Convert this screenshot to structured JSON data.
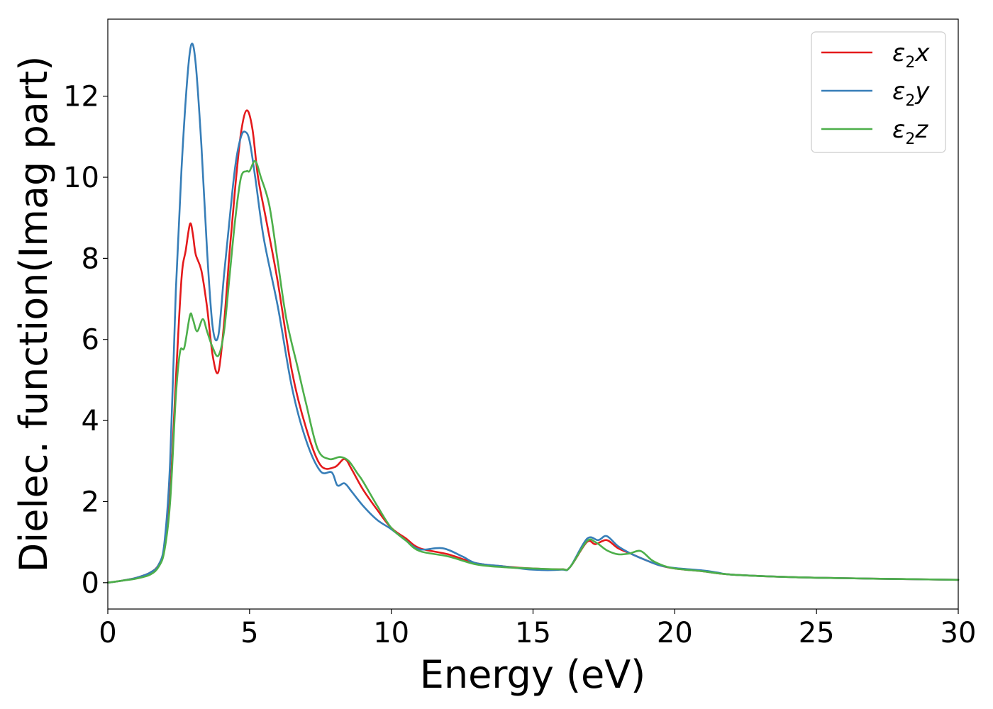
{
  "chart_data": {
    "type": "line",
    "xlabel": "Energy (eV)",
    "ylabel": "Dielec. function(Imag part)",
    "xlim": [
      0,
      30
    ],
    "ylim": [
      -0.65,
      13.9
    ],
    "xticks": [
      0,
      5,
      10,
      15,
      20,
      25,
      30
    ],
    "yticks": [
      0,
      2,
      4,
      6,
      8,
      10,
      12
    ],
    "grid": false,
    "legend_position": "top-right",
    "series": [
      {
        "name": "ε2x",
        "legend": {
          "base": "ε",
          "sub": "2",
          "var": "x"
        },
        "color": "#e41a1c",
        "points": [
          [
            0,
            0.0
          ],
          [
            0.5,
            0.05
          ],
          [
            1.0,
            0.12
          ],
          [
            1.5,
            0.25
          ],
          [
            1.8,
            0.45
          ],
          [
            2.0,
            0.9
          ],
          [
            2.2,
            2.2
          ],
          [
            2.4,
            5.0
          ],
          [
            2.6,
            7.5
          ],
          [
            2.75,
            8.2
          ],
          [
            2.9,
            8.85
          ],
          [
            3.0,
            8.6
          ],
          [
            3.1,
            8.1
          ],
          [
            3.3,
            7.7
          ],
          [
            3.5,
            6.8
          ],
          [
            3.7,
            5.6
          ],
          [
            3.9,
            5.2
          ],
          [
            4.1,
            6.4
          ],
          [
            4.3,
            8.2
          ],
          [
            4.5,
            9.8
          ],
          [
            4.7,
            11.1
          ],
          [
            4.9,
            11.65
          ],
          [
            5.1,
            11.2
          ],
          [
            5.3,
            10.0
          ],
          [
            5.6,
            8.9
          ],
          [
            6.0,
            7.4
          ],
          [
            6.5,
            5.2
          ],
          [
            7.0,
            3.8
          ],
          [
            7.5,
            2.9
          ],
          [
            8.0,
            2.85
          ],
          [
            8.35,
            3.05
          ],
          [
            8.6,
            2.8
          ],
          [
            9.0,
            2.3
          ],
          [
            9.5,
            1.8
          ],
          [
            10.0,
            1.35
          ],
          [
            10.5,
            1.1
          ],
          [
            11.0,
            0.85
          ],
          [
            12.0,
            0.7
          ],
          [
            13.0,
            0.48
          ],
          [
            14.0,
            0.4
          ],
          [
            15.0,
            0.35
          ],
          [
            16.0,
            0.33
          ],
          [
            16.3,
            0.38
          ],
          [
            16.9,
            1.0
          ],
          [
            17.2,
            0.95
          ],
          [
            17.6,
            1.05
          ],
          [
            18.0,
            0.85
          ],
          [
            18.5,
            0.7
          ],
          [
            19.0,
            0.55
          ],
          [
            19.5,
            0.42
          ],
          [
            20.0,
            0.35
          ],
          [
            21.0,
            0.28
          ],
          [
            22.0,
            0.2
          ],
          [
            24.0,
            0.14
          ],
          [
            26.0,
            0.11
          ],
          [
            28.0,
            0.09
          ],
          [
            30.0,
            0.07
          ]
        ]
      },
      {
        "name": "ε2y",
        "legend": {
          "base": "ε",
          "sub": "2",
          "var": "y"
        },
        "color": "#377eb8",
        "points": [
          [
            0,
            0.0
          ],
          [
            0.5,
            0.05
          ],
          [
            1.0,
            0.12
          ],
          [
            1.5,
            0.25
          ],
          [
            1.8,
            0.45
          ],
          [
            2.0,
            1.0
          ],
          [
            2.2,
            3.0
          ],
          [
            2.4,
            7.2
          ],
          [
            2.6,
            10.2
          ],
          [
            2.8,
            12.4
          ],
          [
            2.95,
            13.28
          ],
          [
            3.1,
            12.8
          ],
          [
            3.3,
            10.8
          ],
          [
            3.5,
            8.2
          ],
          [
            3.7,
            6.3
          ],
          [
            3.9,
            6.1
          ],
          [
            4.1,
            7.6
          ],
          [
            4.3,
            9.0
          ],
          [
            4.5,
            10.3
          ],
          [
            4.7,
            11.0
          ],
          [
            4.85,
            11.12
          ],
          [
            5.0,
            10.9
          ],
          [
            5.2,
            10.0
          ],
          [
            5.5,
            8.5
          ],
          [
            6.0,
            6.8
          ],
          [
            6.5,
            4.8
          ],
          [
            7.0,
            3.5
          ],
          [
            7.5,
            2.75
          ],
          [
            7.9,
            2.72
          ],
          [
            8.1,
            2.4
          ],
          [
            8.35,
            2.45
          ],
          [
            8.6,
            2.25
          ],
          [
            9.0,
            1.9
          ],
          [
            9.5,
            1.55
          ],
          [
            10.0,
            1.32
          ],
          [
            10.5,
            1.05
          ],
          [
            11.0,
            0.82
          ],
          [
            11.8,
            0.85
          ],
          [
            12.5,
            0.65
          ],
          [
            13.0,
            0.48
          ],
          [
            14.0,
            0.4
          ],
          [
            15.0,
            0.32
          ],
          [
            16.0,
            0.32
          ],
          [
            16.3,
            0.38
          ],
          [
            16.9,
            1.08
          ],
          [
            17.3,
            1.05
          ],
          [
            17.6,
            1.15
          ],
          [
            18.0,
            0.9
          ],
          [
            18.5,
            0.7
          ],
          [
            19.0,
            0.55
          ],
          [
            19.5,
            0.42
          ],
          [
            20.0,
            0.36
          ],
          [
            21.0,
            0.3
          ],
          [
            21.5,
            0.25
          ],
          [
            22.0,
            0.2
          ],
          [
            24.0,
            0.14
          ],
          [
            26.0,
            0.11
          ],
          [
            28.0,
            0.09
          ],
          [
            30.0,
            0.07
          ]
        ]
      },
      {
        "name": "ε2z",
        "legend": {
          "base": "ε",
          "sub": "2",
          "var": "z"
        },
        "color": "#4daf4a",
        "points": [
          [
            0,
            0.0
          ],
          [
            0.5,
            0.05
          ],
          [
            1.0,
            0.1
          ],
          [
            1.5,
            0.2
          ],
          [
            1.8,
            0.4
          ],
          [
            2.0,
            0.8
          ],
          [
            2.2,
            2.0
          ],
          [
            2.4,
            4.6
          ],
          [
            2.55,
            5.7
          ],
          [
            2.7,
            5.8
          ],
          [
            2.9,
            6.6
          ],
          [
            3.0,
            6.5
          ],
          [
            3.15,
            6.2
          ],
          [
            3.35,
            6.5
          ],
          [
            3.5,
            6.2
          ],
          [
            3.7,
            5.8
          ],
          [
            3.9,
            5.6
          ],
          [
            4.1,
            6.2
          ],
          [
            4.3,
            7.6
          ],
          [
            4.5,
            9.0
          ],
          [
            4.7,
            10.0
          ],
          [
            4.9,
            10.15
          ],
          [
            5.0,
            10.15
          ],
          [
            5.2,
            10.4
          ],
          [
            5.4,
            10.0
          ],
          [
            5.7,
            9.3
          ],
          [
            6.0,
            7.9
          ],
          [
            6.3,
            6.5
          ],
          [
            6.7,
            5.3
          ],
          [
            7.0,
            4.4
          ],
          [
            7.4,
            3.3
          ],
          [
            7.8,
            3.05
          ],
          [
            8.2,
            3.1
          ],
          [
            8.5,
            3.0
          ],
          [
            8.8,
            2.7
          ],
          [
            9.0,
            2.5
          ],
          [
            9.5,
            1.9
          ],
          [
            10.0,
            1.35
          ],
          [
            10.5,
            1.05
          ],
          [
            11.0,
            0.78
          ],
          [
            12.0,
            0.65
          ],
          [
            13.0,
            0.45
          ],
          [
            14.0,
            0.38
          ],
          [
            15.0,
            0.35
          ],
          [
            16.0,
            0.33
          ],
          [
            16.3,
            0.38
          ],
          [
            16.9,
            1.02
          ],
          [
            17.2,
            1.0
          ],
          [
            17.6,
            0.8
          ],
          [
            18.0,
            0.7
          ],
          [
            18.4,
            0.72
          ],
          [
            18.8,
            0.78
          ],
          [
            19.2,
            0.55
          ],
          [
            19.6,
            0.42
          ],
          [
            20.0,
            0.35
          ],
          [
            21.0,
            0.28
          ],
          [
            22.0,
            0.2
          ],
          [
            24.0,
            0.14
          ],
          [
            26.0,
            0.11
          ],
          [
            28.0,
            0.09
          ],
          [
            30.0,
            0.07
          ]
        ]
      }
    ]
  }
}
